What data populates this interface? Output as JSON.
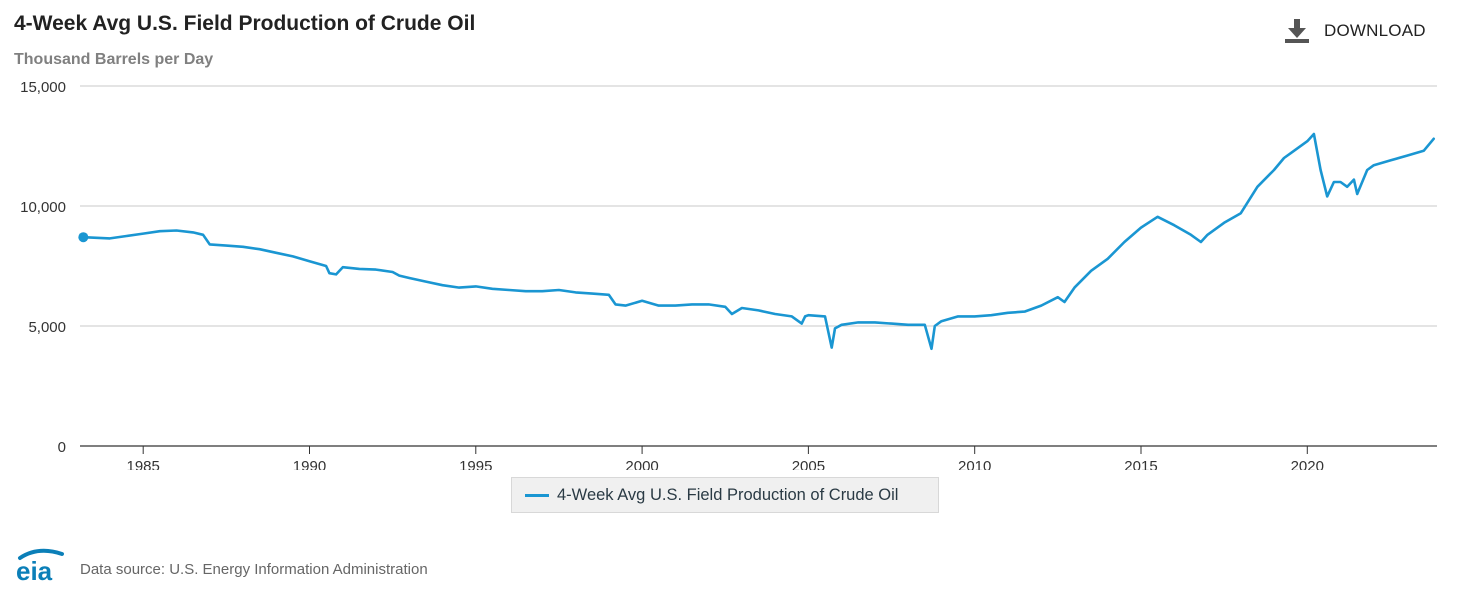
{
  "header": {
    "title": "4-Week Avg U.S. Field Production of Crude Oil",
    "subtitle": "Thousand Barrels per Day",
    "download_label": "DOWNLOAD"
  },
  "legend": {
    "label": "4-Week Avg U.S. Field Production of Crude Oil"
  },
  "footer": {
    "logo_text": "eia",
    "source": "Data source: U.S. Energy Information Administration"
  },
  "colors": {
    "series": "#1a96d2",
    "grid": "#c8c8c8",
    "axis": "#333333",
    "logo": "#0b7fb8"
  },
  "chart_data": {
    "type": "line",
    "title": "4-Week Avg U.S. Field Production of Crude Oil",
    "ylabel": "Thousand Barrels per Day",
    "xlabel": "",
    "ylim": [
      0,
      15000
    ],
    "xlim": [
      1983.1,
      2023.9
    ],
    "yticks": [
      0,
      5000,
      10000,
      15000
    ],
    "ytick_labels": [
      "0",
      "5,000",
      "10,000",
      "15,000"
    ],
    "xticks": [
      1985,
      1990,
      1995,
      2000,
      2005,
      2010,
      2015,
      2020
    ],
    "xtick_labels": [
      "1985",
      "1990",
      "1995",
      "2000",
      "2005",
      "2010",
      "2015",
      "2020"
    ],
    "grid": true,
    "legend_position": "bottom-center",
    "series": [
      {
        "name": "4-Week Avg U.S. Field Production of Crude Oil",
        "x": [
          1983.2,
          1984.0,
          1984.5,
          1985.0,
          1985.5,
          1986.0,
          1986.5,
          1986.8,
          1987.0,
          1987.5,
          1988.0,
          1988.5,
          1989.0,
          1989.5,
          1990.0,
          1990.5,
          1990.6,
          1990.8,
          1991.0,
          1991.5,
          1992.0,
          1992.5,
          1992.7,
          1993.0,
          1993.5,
          1994.0,
          1994.5,
          1995.0,
          1995.5,
          1996.0,
          1996.5,
          1997.0,
          1997.5,
          1998.0,
          1998.5,
          1999.0,
          1999.2,
          1999.5,
          2000.0,
          2000.5,
          2001.0,
          2001.5,
          2002.0,
          2002.5,
          2002.7,
          2003.0,
          2003.5,
          2004.0,
          2004.5,
          2004.8,
          2004.9,
          2005.0,
          2005.5,
          2005.7,
          2005.8,
          2006.0,
          2006.5,
          2007.0,
          2007.5,
          2008.0,
          2008.5,
          2008.7,
          2008.8,
          2009.0,
          2009.5,
          2010.0,
          2010.5,
          2011.0,
          2011.5,
          2012.0,
          2012.5,
          2012.7,
          2013.0,
          2013.5,
          2014.0,
          2014.5,
          2015.0,
          2015.5,
          2016.0,
          2016.5,
          2016.8,
          2017.0,
          2017.5,
          2018.0,
          2018.5,
          2019.0,
          2019.3,
          2019.5,
          2020.0,
          2020.2,
          2020.4,
          2020.6,
          2020.8,
          2021.0,
          2021.2,
          2021.4,
          2021.5,
          2021.8,
          2022.0,
          2022.5,
          2023.0,
          2023.5,
          2023.8
        ],
        "values": [
          8700,
          8650,
          8750,
          8850,
          8950,
          8980,
          8900,
          8800,
          8400,
          8350,
          8300,
          8200,
          8050,
          7900,
          7700,
          7500,
          7200,
          7150,
          7450,
          7380,
          7350,
          7250,
          7100,
          7000,
          6850,
          6700,
          6600,
          6650,
          6550,
          6500,
          6450,
          6450,
          6500,
          6400,
          6350,
          6300,
          5900,
          5850,
          6050,
          5850,
          5850,
          5900,
          5900,
          5800,
          5500,
          5750,
          5650,
          5500,
          5400,
          5100,
          5400,
          5450,
          5400,
          4100,
          4900,
          5050,
          5150,
          5150,
          5100,
          5050,
          5050,
          4050,
          5000,
          5200,
          5400,
          5400,
          5450,
          5550,
          5600,
          5850,
          6200,
          6000,
          6600,
          7300,
          7800,
          8500,
          9100,
          9550,
          9200,
          8800,
          8500,
          8800,
          9300,
          9700,
          10800,
          11500,
          12000,
          12200,
          12700,
          13000,
          11500,
          10400,
          11000,
          11000,
          10800,
          11100,
          10500,
          11500,
          11700,
          11900,
          12100,
          12300,
          12800
        ]
      }
    ]
  }
}
